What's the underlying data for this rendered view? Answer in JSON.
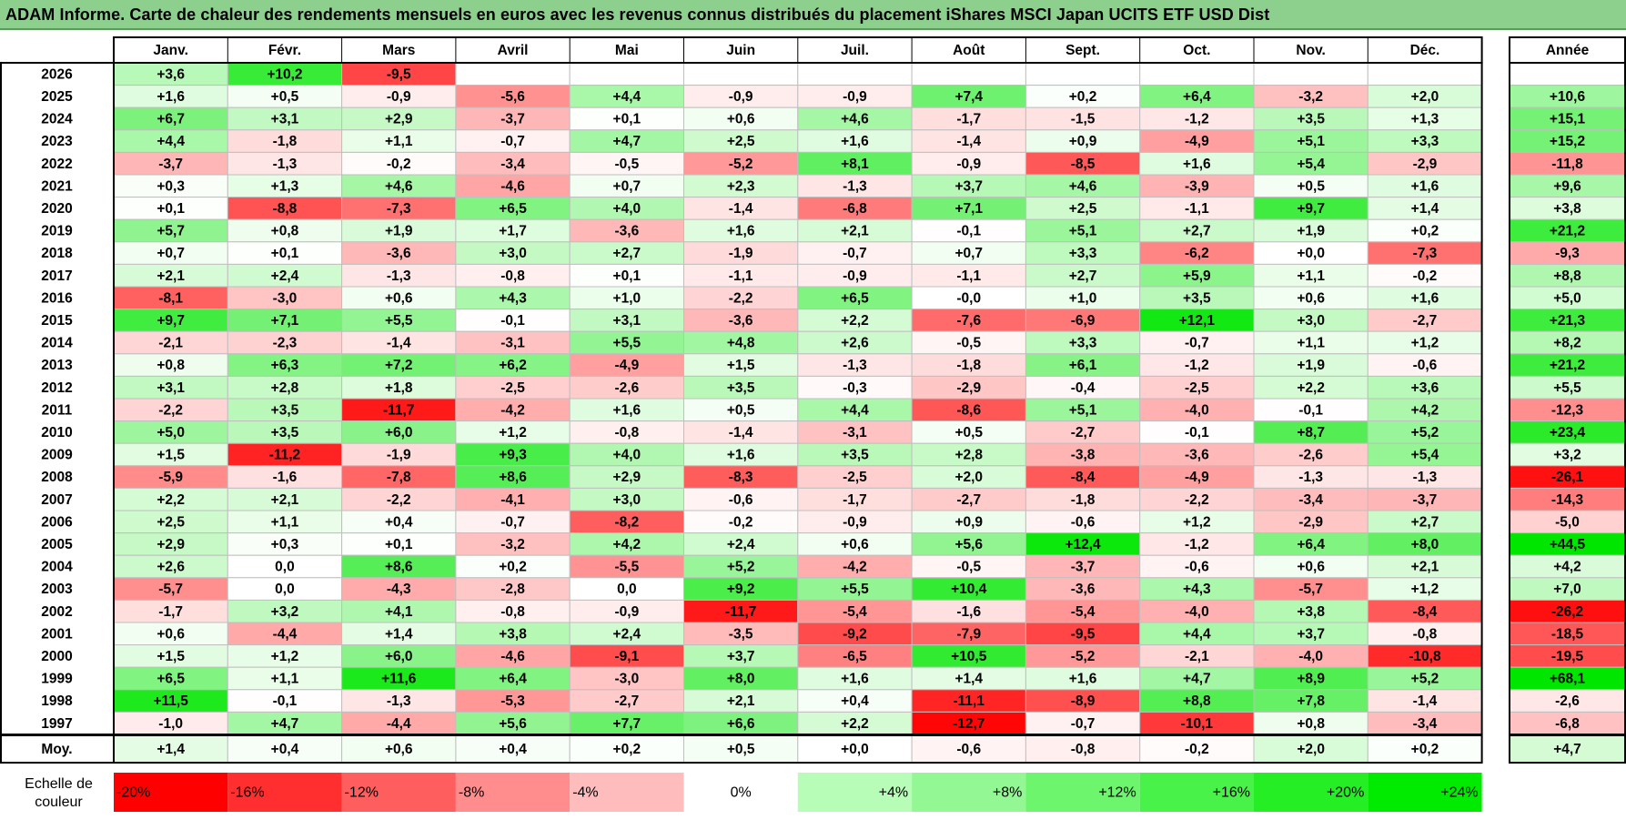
{
  "title": "ADAM Informe. Carte de chaleur des rendements mensuels en euros avec les revenus connus distribués du placement iShares MSCI Japan UCITS ETF USD Dist",
  "chart_data": {
    "type": "heatmap",
    "title": "ADAM Informe. Carte de chaleur des rendements mensuels en euros avec les revenus connus distribués du placement iShares MSCI Japan UCITS ETF USD Dist",
    "columns": [
      "Janv.",
      "Févr.",
      "Mars",
      "Avril",
      "Mai",
      "Juin",
      "Juil.",
      "Août",
      "Sept.",
      "Oct.",
      "Nov.",
      "Déc."
    ],
    "year_column_label": "Année",
    "rows": [
      {
        "year": "2026",
        "months": [
          "+3,6",
          "+10,2",
          "-9,5",
          "",
          "",
          "",
          "",
          "",
          "",
          "",
          "",
          ""
        ],
        "annual": ""
      },
      {
        "year": "2025",
        "months": [
          "+1,6",
          "+0,5",
          "-0,9",
          "-5,6",
          "+4,4",
          "-0,9",
          "-0,9",
          "+7,4",
          "+0,2",
          "+6,4",
          "-3,2",
          "+2,0"
        ],
        "annual": "+10,6"
      },
      {
        "year": "2024",
        "months": [
          "+6,7",
          "+3,1",
          "+2,9",
          "-3,7",
          "+0,1",
          "+0,6",
          "+4,6",
          "-1,7",
          "-1,5",
          "-1,2",
          "+3,5",
          "+1,3"
        ],
        "annual": "+15,1"
      },
      {
        "year": "2023",
        "months": [
          "+4,4",
          "-1,8",
          "+1,1",
          "-0,7",
          "+4,7",
          "+2,5",
          "+1,6",
          "-1,4",
          "+0,9",
          "-4,9",
          "+5,1",
          "+3,3"
        ],
        "annual": "+15,2"
      },
      {
        "year": "2022",
        "months": [
          "-3,7",
          "-1,3",
          "-0,2",
          "-3,4",
          "-0,5",
          "-5,2",
          "+8,1",
          "-0,9",
          "-8,5",
          "+1,6",
          "+5,4",
          "-2,9"
        ],
        "annual": "-11,8"
      },
      {
        "year": "2021",
        "months": [
          "+0,3",
          "+1,3",
          "+4,6",
          "-4,6",
          "+0,7",
          "+2,3",
          "-1,3",
          "+3,7",
          "+4,6",
          "-3,9",
          "+0,5",
          "+1,6"
        ],
        "annual": "+9,6"
      },
      {
        "year": "2020",
        "months": [
          "+0,1",
          "-8,8",
          "-7,3",
          "+6,5",
          "+4,0",
          "-1,4",
          "-6,8",
          "+7,1",
          "+2,5",
          "-1,1",
          "+9,7",
          "+1,4"
        ],
        "annual": "+3,8"
      },
      {
        "year": "2019",
        "months": [
          "+5,7",
          "+0,8",
          "+1,9",
          "+1,7",
          "-3,6",
          "+1,6",
          "+2,1",
          "-0,1",
          "+5,1",
          "+2,7",
          "+1,9",
          "+0,2"
        ],
        "annual": "+21,2"
      },
      {
        "year": "2018",
        "months": [
          "+0,7",
          "+0,1",
          "-3,6",
          "+3,0",
          "+2,7",
          "-1,9",
          "-0,7",
          "+0,7",
          "+3,3",
          "-6,2",
          "+0,0",
          "-7,3"
        ],
        "annual": "-9,3"
      },
      {
        "year": "2017",
        "months": [
          "+2,1",
          "+2,4",
          "-1,3",
          "-0,8",
          "+0,1",
          "-1,1",
          "-0,9",
          "-1,1",
          "+2,7",
          "+5,9",
          "+1,1",
          "-0,2"
        ],
        "annual": "+8,8"
      },
      {
        "year": "2016",
        "months": [
          "-8,1",
          "-3,0",
          "+0,6",
          "+4,3",
          "+1,0",
          "-2,2",
          "+6,5",
          "-0,0",
          "+1,0",
          "+3,5",
          "+0,6",
          "+1,6"
        ],
        "annual": "+5,0"
      },
      {
        "year": "2015",
        "months": [
          "+9,7",
          "+7,1",
          "+5,5",
          "-0,1",
          "+3,1",
          "-3,6",
          "+2,2",
          "-7,6",
          "-6,9",
          "+12,1",
          "+3,0",
          "-2,7"
        ],
        "annual": "+21,3"
      },
      {
        "year": "2014",
        "months": [
          "-2,1",
          "-2,3",
          "-1,4",
          "-3,1",
          "+5,5",
          "+4,8",
          "+2,6",
          "-0,5",
          "+3,3",
          "-0,7",
          "+1,1",
          "+1,2"
        ],
        "annual": "+8,2"
      },
      {
        "year": "2013",
        "months": [
          "+0,8",
          "+6,3",
          "+7,2",
          "+6,2",
          "-4,9",
          "+1,5",
          "-1,3",
          "-1,8",
          "+6,1",
          "-1,2",
          "+1,9",
          "-0,6"
        ],
        "annual": "+21,2"
      },
      {
        "year": "2012",
        "months": [
          "+3,1",
          "+2,8",
          "+1,8",
          "-2,5",
          "-2,6",
          "+3,5",
          "-0,3",
          "-2,9",
          "-0,4",
          "-2,5",
          "+2,2",
          "+3,6"
        ],
        "annual": "+5,5"
      },
      {
        "year": "2011",
        "months": [
          "-2,2",
          "+3,5",
          "-11,7",
          "-4,2",
          "+1,6",
          "+0,5",
          "+4,4",
          "-8,6",
          "+5,1",
          "-4,0",
          "-0,1",
          "+4,2"
        ],
        "annual": "-12,3"
      },
      {
        "year": "2010",
        "months": [
          "+5,0",
          "+3,5",
          "+6,0",
          "+1,2",
          "-0,8",
          "-1,4",
          "-3,1",
          "+0,5",
          "-2,7",
          "-0,1",
          "+8,7",
          "+5,2"
        ],
        "annual": "+23,4"
      },
      {
        "year": "2009",
        "months": [
          "+1,5",
          "-11,2",
          "-1,9",
          "+9,3",
          "+4,0",
          "+1,6",
          "+3,5",
          "+2,8",
          "-3,8",
          "-3,6",
          "-2,6",
          "+5,4"
        ],
        "annual": "+3,2"
      },
      {
        "year": "2008",
        "months": [
          "-5,9",
          "-1,6",
          "-7,8",
          "+8,6",
          "+2,9",
          "-8,3",
          "-2,5",
          "+2,0",
          "-8,4",
          "-4,9",
          "-1,3",
          "-1,3"
        ],
        "annual": "-26,1"
      },
      {
        "year": "2007",
        "months": [
          "+2,2",
          "+2,1",
          "-2,2",
          "-4,1",
          "+3,0",
          "-0,6",
          "-1,7",
          "-2,7",
          "-1,8",
          "-2,2",
          "-3,4",
          "-3,7"
        ],
        "annual": "-14,3"
      },
      {
        "year": "2006",
        "months": [
          "+2,5",
          "+1,1",
          "+0,4",
          "-0,7",
          "-8,2",
          "-0,2",
          "-0,9",
          "+0,9",
          "-0,6",
          "+1,2",
          "-2,9",
          "+2,7"
        ],
        "annual": "-5,0"
      },
      {
        "year": "2005",
        "months": [
          "+2,9",
          "+0,3",
          "+0,1",
          "-3,2",
          "+4,2",
          "+2,4",
          "+0,6",
          "+5,6",
          "+12,4",
          "-1,2",
          "+6,4",
          "+8,0"
        ],
        "annual": "+44,5"
      },
      {
        "year": "2004",
        "months": [
          "+2,6",
          "0,0",
          "+8,6",
          "+0,2",
          "-5,5",
          "+5,2",
          "-4,2",
          "-0,5",
          "-3,7",
          "-0,6",
          "+0,6",
          "+2,1"
        ],
        "annual": "+4,2"
      },
      {
        "year": "2003",
        "months": [
          "-5,7",
          "0,0",
          "-4,3",
          "-2,8",
          "0,0",
          "+9,2",
          "+5,5",
          "+10,4",
          "-3,6",
          "+4,3",
          "-5,7",
          "+1,2"
        ],
        "annual": "+7,0"
      },
      {
        "year": "2002",
        "months": [
          "-1,7",
          "+3,2",
          "+4,1",
          "-0,8",
          "-0,9",
          "-11,7",
          "-5,4",
          "-1,6",
          "-5,4",
          "-4,0",
          "+3,8",
          "-8,4"
        ],
        "annual": "-26,2"
      },
      {
        "year": "2001",
        "months": [
          "+0,6",
          "-4,4",
          "+1,4",
          "+3,8",
          "+2,4",
          "-3,5",
          "-9,2",
          "-7,9",
          "-9,5",
          "+4,4",
          "+3,7",
          "-0,8"
        ],
        "annual": "-18,5"
      },
      {
        "year": "2000",
        "months": [
          "+1,5",
          "+1,2",
          "+6,0",
          "-4,6",
          "-9,1",
          "+3,7",
          "-6,5",
          "+10,5",
          "-5,2",
          "-2,1",
          "-4,0",
          "-10,8"
        ],
        "annual": "-19,5"
      },
      {
        "year": "1999",
        "months": [
          "+6,5",
          "+1,1",
          "+11,6",
          "+6,4",
          "-3,0",
          "+8,0",
          "+1,6",
          "+1,4",
          "+1,6",
          "+4,7",
          "+8,9",
          "+5,2"
        ],
        "annual": "+68,1"
      },
      {
        "year": "1998",
        "months": [
          "+11,5",
          "-0,1",
          "-1,3",
          "-5,3",
          "-2,7",
          "+2,1",
          "+0,4",
          "-11,1",
          "-8,9",
          "+8,8",
          "+7,8",
          "-1,4"
        ],
        "annual": "-2,6"
      },
      {
        "year": "1997",
        "months": [
          "-1,0",
          "+4,7",
          "-4,4",
          "+5,6",
          "+7,7",
          "+6,6",
          "+2,2",
          "-12,7",
          "-0,7",
          "-10,1",
          "+0,8",
          "-3,4"
        ],
        "annual": "-6,8"
      }
    ],
    "average": {
      "label": "Moy.",
      "months": [
        "+1,4",
        "+0,4",
        "+0,6",
        "+0,4",
        "+0,2",
        "+0,5",
        "+0,0",
        "-0,6",
        "-0,8",
        "-0,2",
        "+2,0",
        "+0,2"
      ],
      "annual": "+4,7"
    },
    "legend": {
      "label_line1": "Echelle de",
      "label_line2": "couleur",
      "steps": [
        {
          "label": "-20%",
          "value": -20
        },
        {
          "label": "-16%",
          "value": -16
        },
        {
          "label": "-12%",
          "value": -12
        },
        {
          "label": "-8%",
          "value": -8
        },
        {
          "label": "-4%",
          "value": -4
        },
        {
          "label": "0%",
          "value": 0
        },
        {
          "label": "+4%",
          "value": 4
        },
        {
          "label": "+8%",
          "value": 8
        },
        {
          "label": "+12%",
          "value": 12
        },
        {
          "label": "+16%",
          "value": 16
        },
        {
          "label": "+20%",
          "value": 20
        },
        {
          "label": "+24%",
          "value": 24
        }
      ]
    },
    "color_scale": {
      "negative_max": "#ff0000",
      "neutral": "#ffffff",
      "positive_max": "#00e600"
    }
  }
}
